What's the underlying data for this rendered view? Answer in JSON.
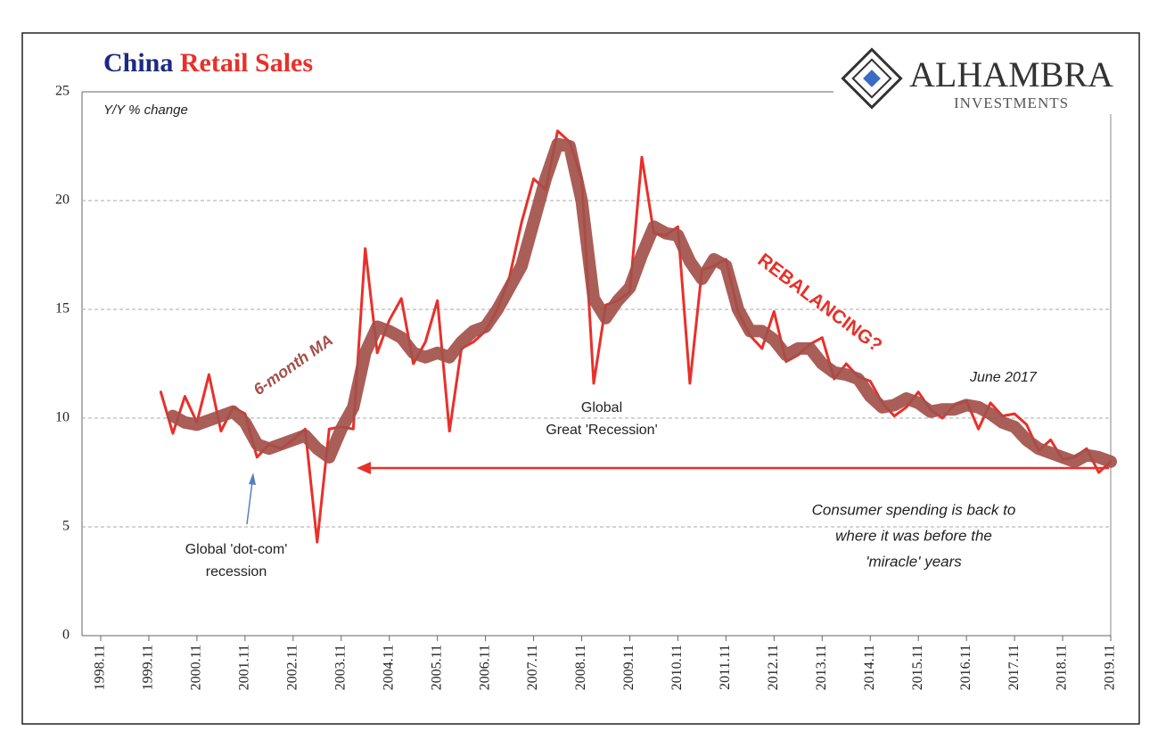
{
  "chart_data": {
    "type": "line",
    "title_parts": [
      "China",
      "Retail Sales"
    ],
    "logo": {
      "name": "ALHAMBRA",
      "tagline": "INVESTMENTS"
    },
    "y_label": "Y/Y % change",
    "annotations": {
      "ma": "6-month MA",
      "rebalancing": "REBALANCING?",
      "recession": [
        "Global",
        "Great 'Recession'"
      ],
      "dotcom": [
        "Global 'dot-com'",
        "recession"
      ],
      "june": "June 2017",
      "consumer": [
        "Consumer spending is back to",
        "where it was before the",
        "'miracle' years"
      ]
    },
    "x": [
      "2000.02",
      "2000.05",
      "2000.08",
      "2000.11",
      "2001.02",
      "2001.05",
      "2001.08",
      "2001.11",
      "2002.02",
      "2002.05",
      "2002.08",
      "2002.11",
      "2003.02",
      "2003.05",
      "2003.08",
      "2003.11",
      "2004.02",
      "2004.05",
      "2004.08",
      "2004.11",
      "2005.02",
      "2005.05",
      "2005.08",
      "2005.11",
      "2006.02",
      "2006.05",
      "2006.08",
      "2006.11",
      "2007.02",
      "2007.05",
      "2007.08",
      "2007.11",
      "2008.02",
      "2008.05",
      "2008.08",
      "2008.11",
      "2009.02",
      "2009.05",
      "2009.08",
      "2009.11",
      "2010.02",
      "2010.05",
      "2010.08",
      "2010.11",
      "2011.02",
      "2011.05",
      "2011.08",
      "2011.11",
      "2012.02",
      "2012.05",
      "2012.08",
      "2012.11",
      "2013.02",
      "2013.05",
      "2013.08",
      "2013.11",
      "2014.02",
      "2014.05",
      "2014.08",
      "2014.11",
      "2015.02",
      "2015.05",
      "2015.08",
      "2015.11",
      "2016.02",
      "2016.05",
      "2016.08",
      "2016.11",
      "2017.02",
      "2017.05",
      "2017.08",
      "2017.11",
      "2018.02",
      "2018.05",
      "2018.08",
      "2018.11",
      "2019.02",
      "2019.05",
      "2019.08",
      "2019.11"
    ],
    "series": [
      {
        "name": "Retail Sales",
        "color": "#e8302a",
        "values": [
          11.2,
          9.3,
          11.0,
          9.8,
          12.0,
          9.4,
          10.5,
          10.2,
          8.2,
          8.8,
          8.6,
          9.0,
          9.5,
          4.3,
          9.5,
          9.6,
          9.5,
          17.8,
          13.0,
          14.5,
          15.5,
          12.5,
          13.5,
          15.4,
          9.4,
          13.2,
          13.5,
          14.0,
          15.0,
          16.5,
          19.0,
          21.0,
          20.5,
          23.2,
          22.7,
          21.0,
          11.6,
          15.2,
          15.4,
          15.8,
          22.0,
          18.5,
          18.4,
          18.8,
          11.6,
          16.8,
          17.0,
          17.3,
          14.9,
          13.8,
          13.2,
          14.9,
          12.6,
          12.9,
          13.4,
          13.7,
          11.8,
          12.5,
          11.9,
          11.7,
          10.7,
          10.1,
          10.5,
          11.2,
          10.4,
          10.0,
          10.6,
          10.8,
          9.5,
          10.7,
          10.1,
          10.2,
          9.7,
          8.5,
          9.0,
          8.1,
          8.2,
          8.6,
          7.5,
          8.0
        ]
      },
      {
        "name": "6-month MA",
        "color": "#a3504a",
        "values": [
          null,
          10.1,
          9.8,
          9.7,
          9.9,
          10.1,
          10.3,
          9.8,
          8.8,
          8.6,
          8.8,
          9.0,
          9.2,
          8.6,
          8.2,
          9.5,
          10.5,
          13.0,
          14.2,
          14.0,
          13.7,
          13.0,
          12.8,
          13.0,
          12.8,
          13.5,
          14.0,
          14.2,
          15.0,
          16.0,
          17.0,
          19.0,
          21.0,
          22.6,
          22.5,
          20.0,
          15.5,
          14.6,
          15.4,
          16.0,
          17.5,
          18.8,
          18.5,
          18.4,
          17.2,
          16.4,
          17.3,
          17.0,
          15.0,
          14.0,
          14.0,
          13.6,
          12.9,
          13.2,
          13.2,
          12.5,
          12.1,
          12.0,
          11.8,
          11.0,
          10.5,
          10.6,
          10.9,
          10.7,
          10.3,
          10.4,
          10.4,
          10.6,
          10.5,
          10.2,
          9.8,
          9.6,
          9.0,
          8.6,
          8.4,
          8.2,
          8.0,
          8.3,
          8.2,
          8.0
        ]
      }
    ],
    "xticks": [
      "1998.11",
      "1999.11",
      "2000.11",
      "2001.11",
      "2002.11",
      "2003.11",
      "2004.11",
      "2005.11",
      "2006.11",
      "2007.11",
      "2008.11",
      "2009.11",
      "2010.11",
      "2011.11",
      "2012.11",
      "2013.11",
      "2014.11",
      "2015.11",
      "2016.11",
      "2017.11",
      "2018.11",
      "2019.11"
    ],
    "ylim": [
      0,
      25
    ],
    "yticks": [
      0,
      5,
      10,
      15,
      20,
      25
    ],
    "grid": true
  }
}
